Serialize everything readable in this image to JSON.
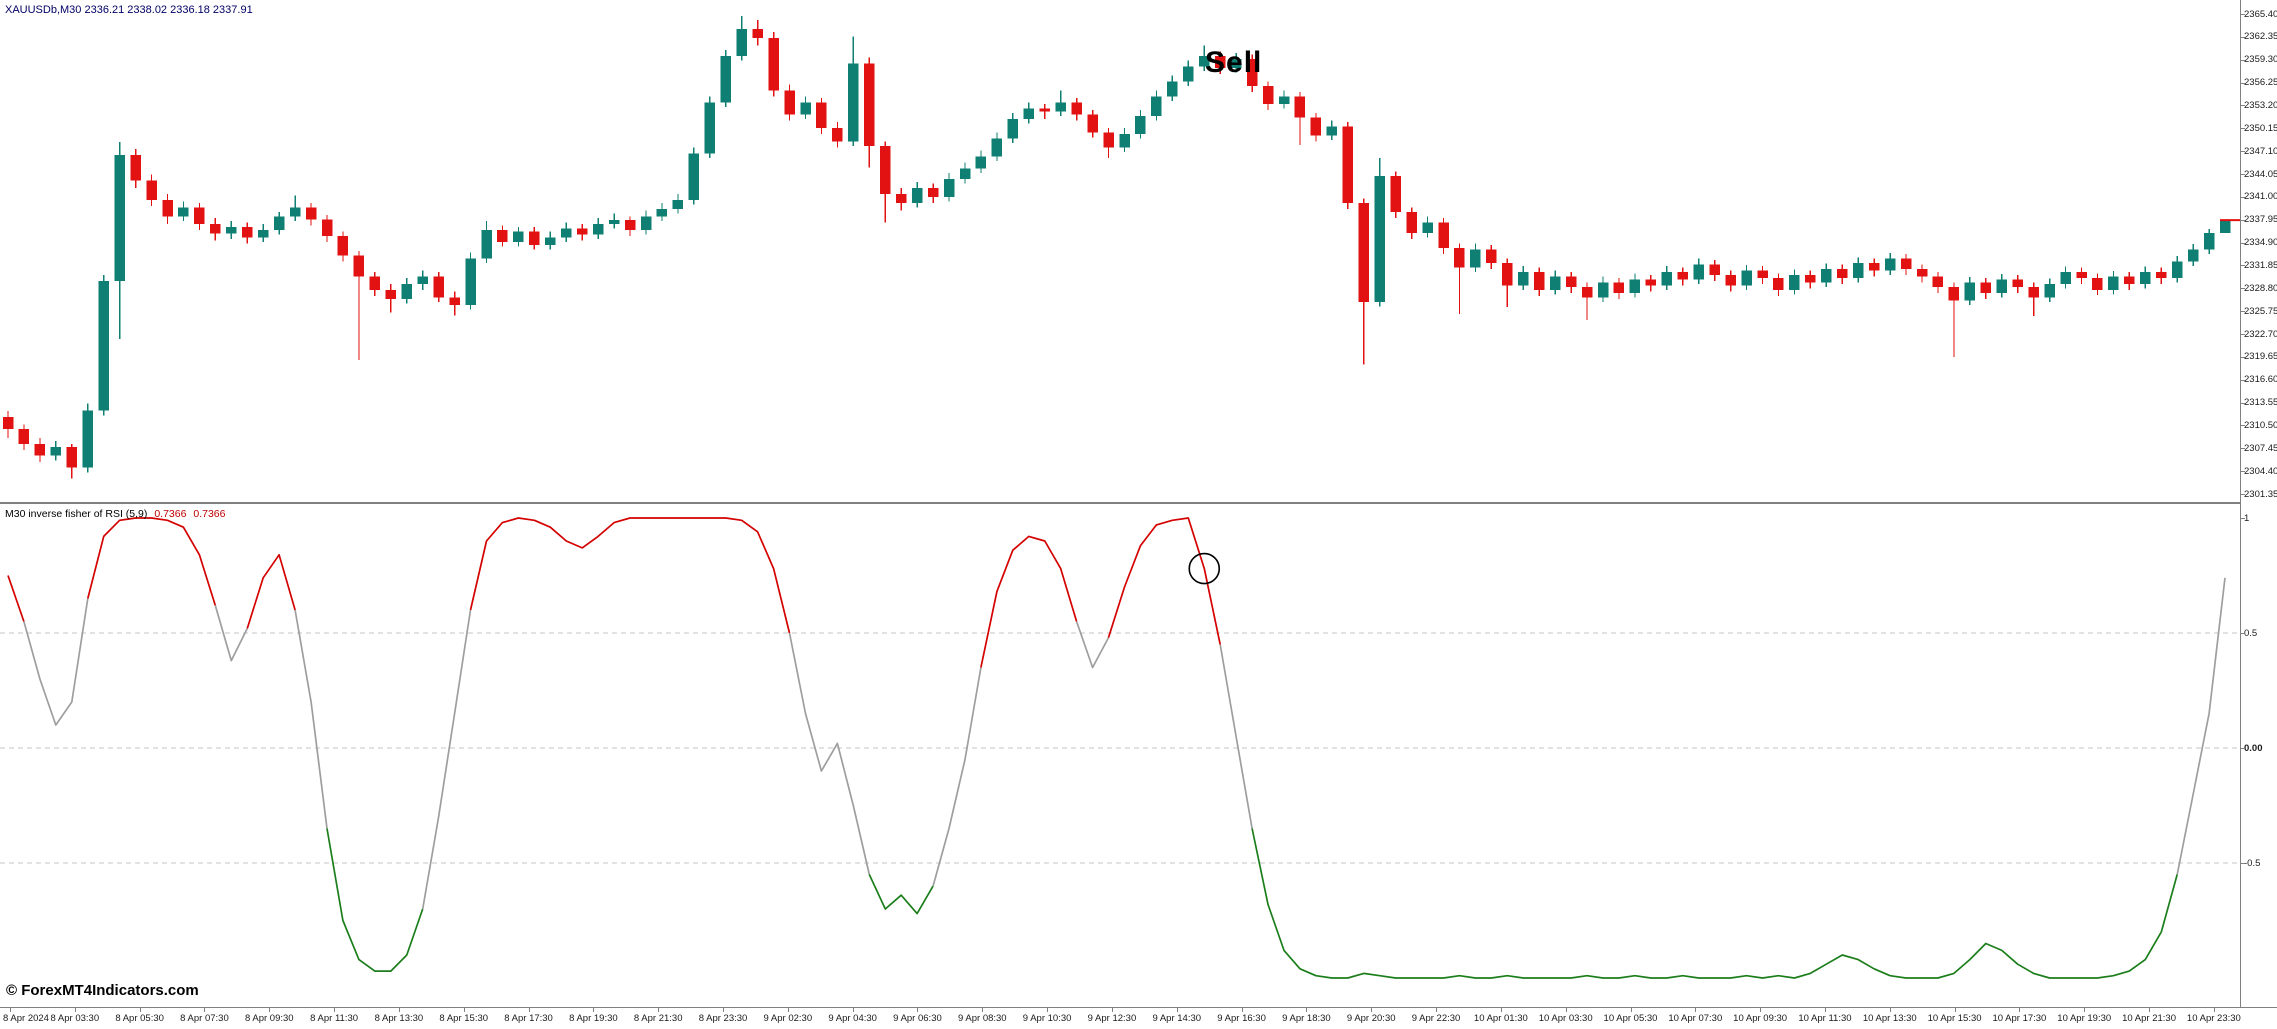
{
  "window": {
    "chart_title": "XAUUSDb,M30  2336.21 2338.02 2336.18 2337.91"
  },
  "annotations": {
    "sell_label": "Sell",
    "watermark": "© ForexMT4Indicators.com"
  },
  "colors": {
    "bull": "#0e7f72",
    "bear": "#e31212",
    "ind_red": "#d40000",
    "ind_green": "#1b7e1b",
    "ind_gray": "#9e9e9e",
    "level": "#c4c4c4",
    "border": "#808080",
    "marker": "#e31212"
  },
  "chart_data": {
    "type": "candlestick",
    "symbol_timeframe": "XAUUSDb,M30",
    "price_axis": {
      "top": 2365.4,
      "step": 3.05,
      "labels": [
        "2365.40",
        "2362.35",
        "2359.30",
        "2356.25",
        "2353.20",
        "2350.15",
        "2347.10",
        "2344.05",
        "2341.00",
        "2337.95",
        "2334.90",
        "2331.85",
        "2328.80",
        "2325.75",
        "2322.70",
        "2319.65",
        "2316.60",
        "2313.55",
        "2310.50",
        "2307.45",
        "2304.40",
        "2301.35"
      ]
    },
    "time_labels": [
      "8 Apr 2024",
      "8 Apr 03:30",
      "8 Apr 05:30",
      "8 Apr 07:30",
      "8 Apr 09:30",
      "8 Apr 11:30",
      "8 Apr 13:30",
      "8 Apr 15:30",
      "8 Apr 17:30",
      "8 Apr 19:30",
      "8 Apr 21:30",
      "8 Apr 23:30",
      "9 Apr 02:30",
      "9 Apr 04:30",
      "9 Apr 06:30",
      "9 Apr 08:30",
      "9 Apr 10:30",
      "9 Apr 12:30",
      "9 Apr 14:30",
      "9 Apr 16:30",
      "9 Apr 18:30",
      "9 Apr 20:30",
      "9 Apr 22:30",
      "10 Apr 01:30",
      "10 Apr 03:30",
      "10 Apr 05:30",
      "10 Apr 07:30",
      "10 Apr 09:30",
      "10 Apr 11:30",
      "10 Apr 13:30",
      "10 Apr 15:30",
      "10 Apr 17:30",
      "10 Apr 19:30",
      "10 Apr 21:30",
      "10 Apr 23:30"
    ],
    "candles": [
      [
        2311.6,
        2312.4,
        2308.8,
        2310.0
      ],
      [
        2310.0,
        2310.6,
        2307.2,
        2308.0
      ],
      [
        2308.0,
        2308.8,
        2305.6,
        2306.5
      ],
      [
        2306.5,
        2308.4,
        2305.8,
        2307.6
      ],
      [
        2307.6,
        2308.0,
        2303.4,
        2304.9
      ],
      [
        2304.9,
        2313.4,
        2304.2,
        2312.5
      ],
      [
        2312.5,
        2330.6,
        2311.8,
        2329.8
      ],
      [
        2329.8,
        2348.3,
        2322.0,
        2346.6
      ],
      [
        2346.6,
        2347.4,
        2342.2,
        2343.2
      ],
      [
        2343.2,
        2344.0,
        2339.8,
        2340.6
      ],
      [
        2340.6,
        2341.4,
        2337.4,
        2338.4
      ],
      [
        2338.4,
        2340.4,
        2337.8,
        2339.6
      ],
      [
        2339.6,
        2340.2,
        2336.6,
        2337.4
      ],
      [
        2337.4,
        2338.2,
        2335.2,
        2336.1
      ],
      [
        2336.1,
        2337.8,
        2335.4,
        2337.0
      ],
      [
        2337.0,
        2337.6,
        2334.8,
        2335.6
      ],
      [
        2335.6,
        2337.4,
        2335.0,
        2336.6
      ],
      [
        2336.6,
        2339.0,
        2336.0,
        2338.4
      ],
      [
        2338.4,
        2341.2,
        2337.8,
        2339.6
      ],
      [
        2339.6,
        2340.2,
        2337.2,
        2338.0
      ],
      [
        2338.0,
        2338.6,
        2335.0,
        2335.8
      ],
      [
        2335.8,
        2336.4,
        2332.4,
        2333.2
      ],
      [
        2333.2,
        2333.8,
        2319.2,
        2330.4
      ],
      [
        2330.4,
        2331.0,
        2327.8,
        2328.6
      ],
      [
        2328.6,
        2329.4,
        2325.6,
        2327.4
      ],
      [
        2327.4,
        2330.2,
        2326.8,
        2329.4
      ],
      [
        2329.4,
        2331.2,
        2328.6,
        2330.4
      ],
      [
        2330.4,
        2331.0,
        2327.0,
        2327.6
      ],
      [
        2327.6,
        2328.4,
        2325.2,
        2326.6
      ],
      [
        2326.6,
        2333.6,
        2326.0,
        2332.8
      ],
      [
        2332.8,
        2337.8,
        2332.2,
        2336.6
      ],
      [
        2336.6,
        2337.2,
        2334.4,
        2335.0
      ],
      [
        2335.0,
        2337.0,
        2334.4,
        2336.4
      ],
      [
        2336.4,
        2337.0,
        2334.0,
        2334.6
      ],
      [
        2334.6,
        2336.4,
        2334.0,
        2335.6
      ],
      [
        2335.6,
        2337.6,
        2335.0,
        2336.8
      ],
      [
        2336.8,
        2337.4,
        2335.2,
        2336.0
      ],
      [
        2336.0,
        2338.2,
        2335.4,
        2337.4
      ],
      [
        2337.4,
        2338.8,
        2336.8,
        2337.9
      ],
      [
        2337.9,
        2338.4,
        2335.8,
        2336.6
      ],
      [
        2336.6,
        2339.2,
        2336.0,
        2338.4
      ],
      [
        2338.4,
        2340.2,
        2337.8,
        2339.4
      ],
      [
        2339.4,
        2341.4,
        2338.8,
        2340.6
      ],
      [
        2340.6,
        2347.6,
        2340.0,
        2346.8
      ],
      [
        2346.8,
        2354.4,
        2346.2,
        2353.6
      ],
      [
        2353.6,
        2360.6,
        2353.0,
        2359.8
      ],
      [
        2359.8,
        2365.1,
        2359.2,
        2363.4
      ],
      [
        2363.4,
        2364.6,
        2361.2,
        2362.2
      ],
      [
        2362.2,
        2363.0,
        2354.4,
        2355.2
      ],
      [
        2355.2,
        2356.0,
        2351.2,
        2352.0
      ],
      [
        2352.0,
        2354.4,
        2351.4,
        2353.6
      ],
      [
        2353.6,
        2354.2,
        2349.4,
        2350.2
      ],
      [
        2350.2,
        2351.0,
        2347.6,
        2348.4
      ],
      [
        2348.4,
        2362.4,
        2347.8,
        2358.8
      ],
      [
        2358.8,
        2359.6,
        2344.9,
        2347.8
      ],
      [
        2347.8,
        2348.4,
        2337.6,
        2341.4
      ],
      [
        2341.4,
        2342.2,
        2339.2,
        2340.2
      ],
      [
        2340.2,
        2343.0,
        2339.6,
        2342.2
      ],
      [
        2342.2,
        2342.8,
        2340.2,
        2341.0
      ],
      [
        2341.0,
        2344.2,
        2340.4,
        2343.4
      ],
      [
        2343.4,
        2345.6,
        2342.8,
        2344.8
      ],
      [
        2344.8,
        2347.2,
        2344.2,
        2346.4
      ],
      [
        2346.4,
        2349.6,
        2345.8,
        2348.8
      ],
      [
        2348.8,
        2352.2,
        2348.2,
        2351.4
      ],
      [
        2351.4,
        2353.6,
        2350.8,
        2352.8
      ],
      [
        2352.8,
        2353.4,
        2351.4,
        2352.4
      ],
      [
        2352.4,
        2355.2,
        2351.8,
        2353.6
      ],
      [
        2353.6,
        2354.2,
        2351.2,
        2352.0
      ],
      [
        2352.0,
        2352.6,
        2348.9,
        2349.6
      ],
      [
        2349.6,
        2350.2,
        2346.2,
        2347.6
      ],
      [
        2347.6,
        2350.2,
        2347.0,
        2349.4
      ],
      [
        2349.4,
        2352.6,
        2348.8,
        2351.8
      ],
      [
        2351.8,
        2355.2,
        2351.2,
        2354.4
      ],
      [
        2354.4,
        2357.2,
        2353.8,
        2356.4
      ],
      [
        2356.4,
        2359.2,
        2355.8,
        2358.4
      ],
      [
        2358.4,
        2361.2,
        2357.8,
        2359.8
      ],
      [
        2359.8,
        2360.4,
        2357.4,
        2358.2
      ],
      [
        2358.2,
        2360.2,
        2357.6,
        2359.4
      ],
      [
        2359.4,
        2360.0,
        2355.0,
        2355.8
      ],
      [
        2355.8,
        2356.4,
        2352.6,
        2353.4
      ],
      [
        2353.4,
        2355.2,
        2352.8,
        2354.4
      ],
      [
        2354.4,
        2355.0,
        2347.9,
        2351.6
      ],
      [
        2351.6,
        2352.2,
        2348.4,
        2349.2
      ],
      [
        2349.2,
        2351.2,
        2348.6,
        2350.4
      ],
      [
        2350.4,
        2351.0,
        2339.4,
        2340.2
      ],
      [
        2340.2,
        2340.8,
        2318.6,
        2327.0
      ],
      [
        2327.0,
        2346.2,
        2326.4,
        2343.8
      ],
      [
        2343.8,
        2344.4,
        2338.2,
        2339.0
      ],
      [
        2339.0,
        2339.6,
        2335.4,
        2336.2
      ],
      [
        2336.2,
        2338.4,
        2335.6,
        2337.6
      ],
      [
        2337.6,
        2338.2,
        2333.4,
        2334.2
      ],
      [
        2334.2,
        2334.8,
        2325.4,
        2331.6
      ],
      [
        2331.6,
        2334.8,
        2331.0,
        2334.0
      ],
      [
        2334.0,
        2334.6,
        2331.4,
        2332.2
      ],
      [
        2332.2,
        2332.8,
        2326.3,
        2329.2
      ],
      [
        2329.2,
        2331.8,
        2328.6,
        2331.0
      ],
      [
        2331.0,
        2331.6,
        2327.8,
        2328.6
      ],
      [
        2328.6,
        2331.2,
        2328.0,
        2330.4
      ],
      [
        2330.4,
        2331.0,
        2328.2,
        2329.0
      ],
      [
        2329.0,
        2329.6,
        2324.6,
        2327.6
      ],
      [
        2327.6,
        2330.4,
        2327.0,
        2329.6
      ],
      [
        2329.6,
        2330.2,
        2327.4,
        2328.2
      ],
      [
        2328.2,
        2330.8,
        2327.6,
        2330.0
      ],
      [
        2330.0,
        2330.6,
        2328.4,
        2329.2
      ],
      [
        2329.2,
        2331.8,
        2328.6,
        2331.0
      ],
      [
        2331.0,
        2331.6,
        2329.2,
        2330.0
      ],
      [
        2330.0,
        2332.8,
        2329.4,
        2332.0
      ],
      [
        2332.0,
        2332.6,
        2329.8,
        2330.6
      ],
      [
        2330.6,
        2331.2,
        2328.4,
        2329.2
      ],
      [
        2329.2,
        2331.9,
        2328.6,
        2331.2
      ],
      [
        2331.2,
        2331.8,
        2329.4,
        2330.2
      ],
      [
        2330.2,
        2330.8,
        2327.8,
        2328.6
      ],
      [
        2328.6,
        2331.3,
        2328.0,
        2330.6
      ],
      [
        2330.6,
        2331.2,
        2328.8,
        2329.6
      ],
      [
        2329.6,
        2332.1,
        2329.0,
        2331.4
      ],
      [
        2331.4,
        2332.0,
        2329.4,
        2330.2
      ],
      [
        2330.2,
        2332.9,
        2329.6,
        2332.2
      ],
      [
        2332.2,
        2332.8,
        2330.4,
        2331.2
      ],
      [
        2331.2,
        2333.5,
        2330.6,
        2332.8
      ],
      [
        2332.8,
        2333.4,
        2330.6,
        2331.4
      ],
      [
        2331.4,
        2332.0,
        2329.6,
        2330.4
      ],
      [
        2330.4,
        2331.0,
        2328.2,
        2329.0
      ],
      [
        2329.0,
        2329.6,
        2319.6,
        2327.2
      ],
      [
        2327.2,
        2330.3,
        2326.6,
        2329.6
      ],
      [
        2329.6,
        2330.2,
        2327.4,
        2328.2
      ],
      [
        2328.2,
        2330.7,
        2327.6,
        2330.0
      ],
      [
        2330.0,
        2330.6,
        2328.2,
        2329.0
      ],
      [
        2329.0,
        2329.6,
        2325.1,
        2327.6
      ],
      [
        2327.6,
        2330.1,
        2327.0,
        2329.4
      ],
      [
        2329.4,
        2331.7,
        2328.8,
        2331.0
      ],
      [
        2331.0,
        2331.6,
        2329.4,
        2330.2
      ],
      [
        2330.2,
        2330.8,
        2327.9,
        2328.6
      ],
      [
        2328.6,
        2331.1,
        2328.0,
        2330.4
      ],
      [
        2330.4,
        2331.0,
        2328.6,
        2329.4
      ],
      [
        2329.4,
        2331.7,
        2328.8,
        2331.0
      ],
      [
        2331.0,
        2331.6,
        2329.4,
        2330.2
      ],
      [
        2330.2,
        2333.1,
        2329.6,
        2332.4
      ],
      [
        2332.4,
        2334.7,
        2331.8,
        2334.0
      ],
      [
        2334.0,
        2336.7,
        2333.4,
        2336.2
      ],
      [
        2336.2,
        2338.0,
        2336.2,
        2337.9
      ]
    ],
    "indicator": {
      "type": "line",
      "title": "M30 inverse fisher of RSI (5,9)",
      "values": [
        "0.7366",
        "0.7366"
      ],
      "scale": {
        "labels": [
          "1",
          "0.5",
          "0.00",
          "-0.5"
        ],
        "values": [
          1,
          0.5,
          0,
          -0.5
        ]
      },
      "levels": [
        0.5,
        0,
        -0.5
      ],
      "series": [
        0.75,
        0.55,
        0.3,
        0.1,
        0.2,
        0.65,
        0.92,
        0.99,
        1,
        1,
        0.99,
        0.96,
        0.84,
        0.62,
        0.38,
        0.52,
        0.74,
        0.84,
        0.6,
        0.2,
        -0.35,
        -0.75,
        -0.92,
        -0.97,
        -0.97,
        -0.9,
        -0.7,
        -0.3,
        0.15,
        0.6,
        0.9,
        0.98,
        1,
        0.99,
        0.96,
        0.9,
        0.87,
        0.92,
        0.98,
        1,
        1,
        1,
        1,
        1,
        1,
        1,
        0.99,
        0.94,
        0.78,
        0.5,
        0.15,
        -0.1,
        0.02,
        -0.25,
        -0.55,
        -0.7,
        -0.64,
        -0.72,
        -0.6,
        -0.35,
        -0.05,
        0.35,
        0.68,
        0.86,
        0.92,
        0.9,
        0.78,
        0.55,
        0.35,
        0.48,
        0.7,
        0.88,
        0.97,
        0.99,
        1,
        0.78,
        0.45,
        0.05,
        -0.35,
        -0.68,
        -0.88,
        -0.96,
        -0.99,
        -1,
        -1,
        -0.98,
        -0.99,
        -1,
        -1,
        -1,
        -1,
        -0.99,
        -1,
        -1,
        -0.99,
        -1,
        -1,
        -1,
        -1,
        -0.99,
        -1,
        -1,
        -0.99,
        -1,
        -1,
        -0.99,
        -1,
        -1,
        -1,
        -0.99,
        -1,
        -0.99,
        -1,
        -0.98,
        -0.94,
        -0.9,
        -0.92,
        -0.96,
        -0.99,
        -1,
        -1,
        -1,
        -0.98,
        -0.92,
        -0.85,
        -0.88,
        -0.94,
        -0.98,
        -1,
        -1,
        -1,
        -1,
        -0.99,
        -0.97,
        -0.92,
        -0.8,
        -0.55,
        -0.2,
        0.15,
        0.74
      ]
    },
    "signal": {
      "label": "Sell",
      "circle_bar": 75,
      "circle_value": 0.78
    }
  }
}
